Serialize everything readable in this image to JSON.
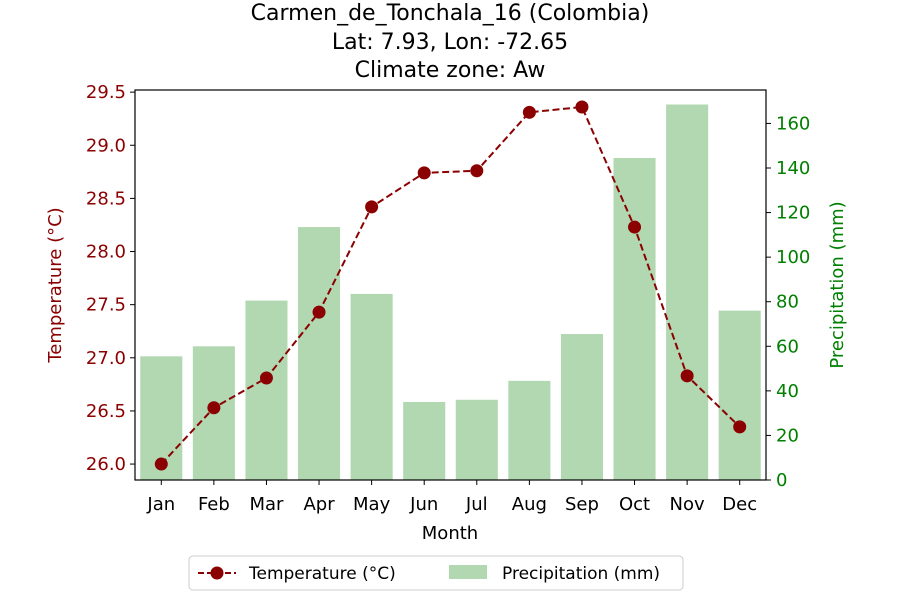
{
  "colors": {
    "temperature": "#8b0000",
    "precipitation_fill": "#b2d8b2",
    "precip_axis": "#008000",
    "temp_axis": "#8b0000"
  },
  "chart_data": {
    "type": "bar",
    "title_lines": [
      "Carmen_de_Tonchala_16 (Colombia)",
      "Lat: 7.93, Lon: -72.65",
      "Climate zone: Aw"
    ],
    "xlabel": "Month",
    "ylabel_left": "Temperature (°C)",
    "ylabel_right": "Precipitation (mm)",
    "categories": [
      "Jan",
      "Feb",
      "Mar",
      "Apr",
      "May",
      "Jun",
      "Jul",
      "Aug",
      "Sep",
      "Oct",
      "Nov",
      "Dec"
    ],
    "series": [
      {
        "name": "Temperature (°C)",
        "type": "line",
        "axis": "left",
        "values": [
          26.0,
          26.53,
          26.81,
          27.43,
          28.42,
          28.74,
          28.76,
          29.31,
          29.36,
          28.23,
          26.83,
          26.35
        ]
      },
      {
        "name": "Precipitation (mm)",
        "type": "bar",
        "axis": "right",
        "values": [
          55.5,
          60,
          80.5,
          113.5,
          83.5,
          35,
          36,
          44.5,
          65.5,
          144.5,
          168.5,
          76
        ]
      }
    ],
    "ylim_left": [
      25.85,
      29.52
    ],
    "ylim_right": [
      0,
      175
    ],
    "yticks_left": [
      "26.0",
      "26.5",
      "27.0",
      "27.5",
      "28.0",
      "28.5",
      "29.0",
      "29.5"
    ],
    "yticks_right": [
      "0",
      "20",
      "40",
      "60",
      "80",
      "100",
      "120",
      "140",
      "160"
    ],
    "legend_position": "bottom-center",
    "grid": false
  }
}
